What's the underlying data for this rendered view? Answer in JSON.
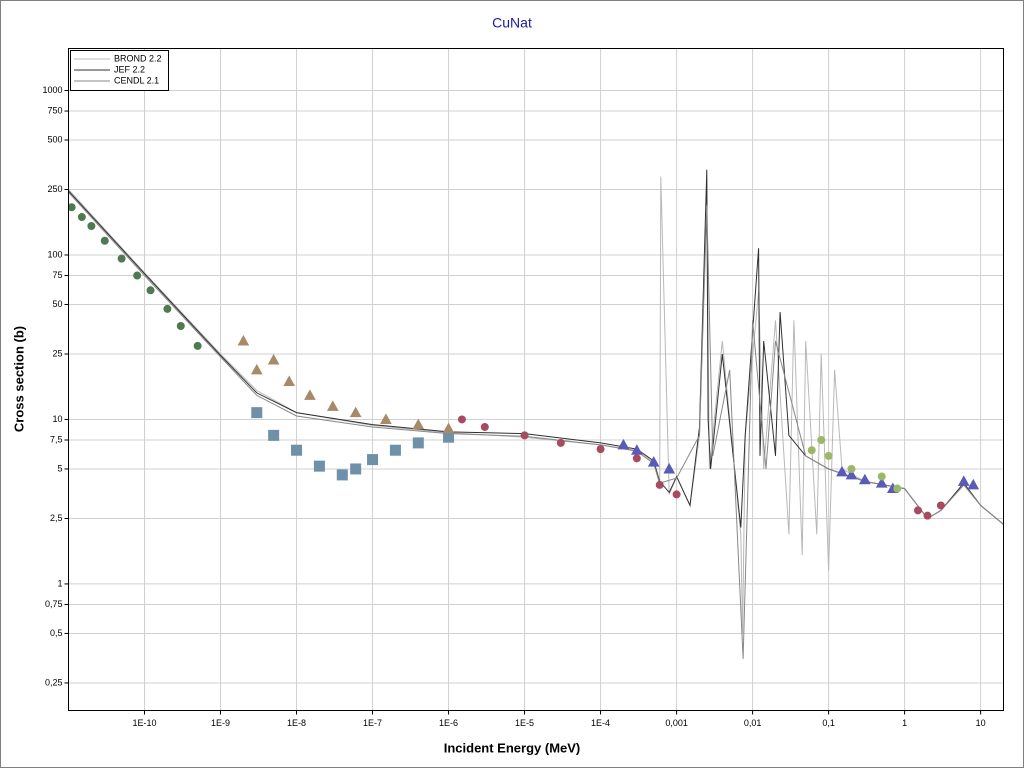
{
  "chart_data": {
    "type": "line",
    "title": "CuNat",
    "x_label": "Incident Energy (MeV)",
    "y_label": "Cross section (b)",
    "log_x": true,
    "log_y": true,
    "grid": true,
    "legend": "top-left",
    "xlim": [
      1e-11,
      20
    ],
    "ylim": [
      0.17,
      1800
    ],
    "xticks": [
      {
        "value": 1e-10,
        "label": "1E-10"
      },
      {
        "value": 1e-09,
        "label": "1E-9"
      },
      {
        "value": 1e-08,
        "label": "1E-8"
      },
      {
        "value": 1e-07,
        "label": "1E-7"
      },
      {
        "value": 1e-06,
        "label": "1E-6"
      },
      {
        "value": 1e-05,
        "label": "1E-5"
      },
      {
        "value": 0.0001,
        "label": "1E-4"
      },
      {
        "value": 0.001,
        "label": "0,001"
      },
      {
        "value": 0.01,
        "label": "0,01"
      },
      {
        "value": 0.1,
        "label": "0,1"
      },
      1,
      10
    ],
    "yticks": [
      {
        "value": 0.25,
        "label": "0,25"
      },
      {
        "value": 0.5,
        "label": "0,5"
      },
      {
        "value": 0.75,
        "label": "0,75"
      },
      1,
      {
        "value": 2.5,
        "label": "2,5"
      },
      5,
      {
        "value": 7.5,
        "label": "7,5"
      },
      10,
      25,
      50,
      75,
      100,
      250,
      500,
      750,
      1000
    ],
    "series": [
      {
        "name": "BROND 2.2",
        "color": "#b8b8b8",
        "x": [
          1e-11,
          1e-10,
          1e-09,
          3e-09,
          1e-08,
          1e-07,
          1e-06,
          1e-05,
          0.0001,
          0.0003,
          0.0005,
          0.0006,
          0.00062,
          0.0008,
          0.001,
          0.0015,
          0.002,
          0.0025,
          0.0027,
          0.004,
          0.007,
          0.0074,
          0.008,
          0.012,
          0.014,
          0.02,
          0.03,
          0.035,
          0.045,
          0.05,
          0.07,
          0.08,
          0.1,
          0.12,
          0.15,
          0.3,
          1,
          2,
          3,
          6,
          10,
          20
        ],
        "y": [
          250,
          78,
          25,
          15,
          11,
          9.2,
          8.3,
          7.8,
          7,
          6.5,
          5.5,
          4,
          300,
          3.5,
          4.5,
          3,
          8,
          250,
          5,
          30,
          2,
          0.5,
          8,
          60,
          5,
          40,
          2,
          40,
          1.5,
          30,
          2,
          25,
          1.2,
          20,
          5,
          4.2,
          3.8,
          2.5,
          2.8,
          4,
          3,
          2.3
        ]
      },
      {
        "name": "JEF 2.2",
        "color": "#303030",
        "x": [
          1e-11,
          1e-10,
          1e-09,
          3e-09,
          1e-08,
          1e-07,
          1e-06,
          1e-05,
          0.0001,
          0.0003,
          0.0005,
          0.0006,
          0.0008,
          0.001,
          0.0015,
          0.002,
          0.0025,
          0.0026,
          0.0028,
          0.004,
          0.007,
          0.008,
          0.012,
          0.0125,
          0.014,
          0.02,
          0.023,
          0.03,
          0.05,
          0.1,
          0.3,
          1,
          2,
          3,
          6,
          10,
          20
        ],
        "y": [
          245,
          77,
          24.5,
          14.5,
          11,
          9.3,
          8.4,
          8.2,
          7.2,
          6.6,
          5.6,
          4.2,
          3.6,
          4.5,
          3,
          9,
          330,
          10,
          5,
          25,
          2.2,
          8,
          110,
          6,
          30,
          6,
          45,
          8,
          6,
          5,
          4.2,
          3.8,
          2.5,
          2.8,
          4.1,
          3,
          2.3
        ]
      },
      {
        "name": "CENDL 2.1",
        "color": "#888888",
        "x": [
          1e-11,
          1e-10,
          1e-09,
          3e-09,
          1e-08,
          1e-07,
          1e-06,
          1e-05,
          0.0001,
          0.0003,
          0.0005,
          0.0006,
          0.001,
          0.002,
          0.0025,
          0.003,
          0.005,
          0.0075,
          0.01,
          0.015,
          0.02,
          0.05,
          0.1,
          0.3,
          1,
          2,
          3,
          6,
          10,
          20
        ],
        "y": [
          240,
          75,
          24,
          14,
          10.5,
          9,
          8.2,
          7.9,
          7,
          6.4,
          5.4,
          4.1,
          4.4,
          8,
          200,
          6,
          20,
          0.35,
          40,
          5,
          30,
          6,
          5,
          4.2,
          3.8,
          2.5,
          2.8,
          4,
          3,
          2.3
        ]
      },
      {
        "color": "#4f7a4f",
        "marker": "circle",
        "x": [
          1.1e-11,
          1.5e-11,
          2e-11,
          3e-11,
          5e-11,
          8e-11,
          1.2e-10,
          2e-10,
          3e-10,
          5e-10
        ],
        "y": [
          195,
          170,
          150,
          122,
          95,
          75,
          61,
          47,
          37,
          28
        ]
      },
      {
        "color": "#6e90a8",
        "marker": "square",
        "x": [
          3e-09,
          5e-09,
          1e-08,
          2e-08,
          4e-08,
          6e-08,
          1e-07,
          2e-07,
          4e-07,
          1e-06
        ],
        "y": [
          11,
          8,
          6.5,
          5.2,
          4.6,
          5,
          5.7,
          6.5,
          7.2,
          7.8
        ]
      },
      {
        "color": "#a88a68",
        "marker": "triangle",
        "x": [
          2e-09,
          3e-09,
          5e-09,
          8e-09,
          1.5e-08,
          3e-08,
          6e-08,
          1.5e-07,
          4e-07,
          1e-06
        ],
        "y": [
          30,
          20,
          23,
          17,
          14,
          12,
          11,
          10,
          9.3,
          8.8
        ]
      },
      {
        "color": "#a84a60",
        "marker": "circle",
        "x": [
          1.5e-06,
          3e-06,
          1e-05,
          3e-05,
          0.0001,
          0.0003,
          0.0006,
          0.001,
          1.5,
          2,
          3
        ],
        "y": [
          10,
          9,
          8,
          7.2,
          6.6,
          5.8,
          4,
          3.5,
          2.8,
          2.6,
          3
        ]
      },
      {
        "color": "#5a5ab8",
        "marker": "triangle",
        "x": [
          0.0002,
          0.0003,
          0.0005,
          0.0008,
          0.15,
          0.2,
          0.3,
          0.5,
          0.7,
          6,
          8
        ],
        "y": [
          7,
          6.5,
          5.5,
          5,
          4.8,
          4.6,
          4.3,
          4.1,
          3.8,
          4.2,
          4
        ]
      },
      {
        "color": "#9ab868",
        "marker": "circle",
        "x": [
          0.06,
          0.08,
          0.1,
          0.2,
          0.5,
          0.8
        ],
        "y": [
          6.5,
          7.5,
          6,
          5,
          4.5,
          3.8
        ]
      }
    ]
  }
}
